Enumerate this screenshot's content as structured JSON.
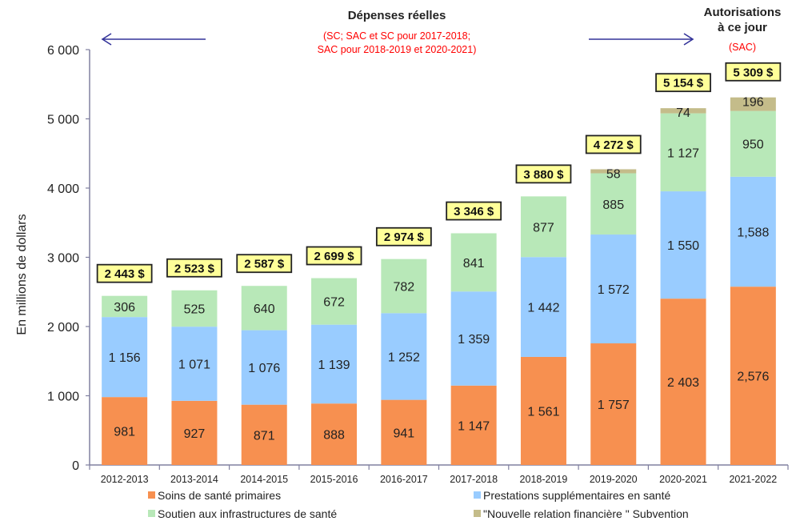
{
  "chart_data": {
    "type": "bar",
    "stacked": true,
    "title": "",
    "xlabel": "",
    "ylabel": "En millions de dollars",
    "ylim": [
      0,
      6000
    ],
    "yticks": [
      0,
      1000,
      2000,
      3000,
      4000,
      5000,
      6000
    ],
    "ytick_labels": [
      "0",
      "1 000",
      "2 000",
      "3 000",
      "4 000",
      "5 000",
      "6 000"
    ],
    "grid": false,
    "legend_position": "bottom",
    "categories": [
      "2012-2013",
      "2013-2014",
      "2014-2015",
      "2015-2016",
      "2016-2017",
      "2017-2018",
      "2018-2019",
      "2019-2020",
      "2020-2021",
      "2021-2022"
    ],
    "series": [
      {
        "name": "Soins de santé primaires",
        "color": "#f79050",
        "values": [
          981,
          927,
          871,
          888,
          941,
          1147,
          1561,
          1757,
          2403,
          2576
        ],
        "labels": [
          "981",
          "927",
          "871",
          "888",
          "941",
          "1 147",
          "1 561",
          "1 757",
          "2 403",
          "2,576"
        ]
      },
      {
        "name": "Prestations supplémentaires en santé",
        "color": "#99ccff",
        "values": [
          1156,
          1071,
          1076,
          1139,
          1252,
          1359,
          1442,
          1572,
          1550,
          1588
        ],
        "labels": [
          "1 156",
          "1 071",
          "1 076",
          "1 139",
          "1 252",
          "1 359",
          "1 442",
          "1 572",
          "1 550",
          "1,588"
        ]
      },
      {
        "name": "Soutien aux infrastructures de santé",
        "color": "#b8e8b8",
        "values": [
          306,
          525,
          640,
          672,
          782,
          841,
          877,
          885,
          1127,
          950
        ],
        "labels": [
          "306",
          "525",
          "640",
          "672",
          "782",
          "841",
          "877",
          "885",
          "1 127",
          "950"
        ]
      },
      {
        "name": "\"Nouvelle relation financière \" Subvention",
        "color": "#c4bc8a",
        "values": [
          0,
          0,
          0,
          0,
          0,
          0,
          0,
          58,
          74,
          196
        ],
        "labels": [
          "",
          "",
          "",
          "",
          "",
          "",
          "",
          "58",
          "74",
          "196"
        ]
      }
    ],
    "totals": [
      2443,
      2523,
      2587,
      2699,
      2974,
      3346,
      3880,
      4272,
      5154,
      5309
    ],
    "total_labels": [
      "2 443 $",
      "2 523 $",
      "2 587 $",
      "2 699 $",
      "2 974 $",
      "3 346 $",
      "3 880 $",
      "4 272 $",
      "5 154 $",
      "5 309 $"
    ],
    "annotations": {
      "actual_title": "Dépenses réelles",
      "actual_note_line1": "(SC; SAC et SC pour 2017-2018;",
      "actual_note_line2": "SAC pour 2018-2019 et 2020-2021)",
      "auth_title_line1": "Autorisations",
      "auth_title_line2": "à ce jour",
      "auth_note": "(SAC)"
    },
    "colors": {
      "axis": "#8080a0",
      "arrow": "#333399",
      "note_red": "#ff0000",
      "total_box_fill": "#ffff99",
      "total_box_stroke": "#222222"
    }
  }
}
